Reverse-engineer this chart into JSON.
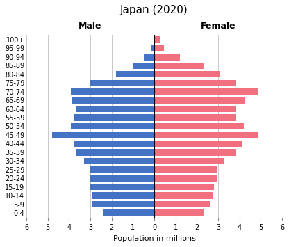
{
  "title": "Japan (2020)",
  "xlabel": "Population in millions",
  "age_groups": [
    "0-4",
    "5-9",
    "10-14",
    "15-19",
    "20-24",
    "25-29",
    "30-34",
    "35-39",
    "40-44",
    "45-49",
    "50-54",
    "55-59",
    "60-64",
    "65-69",
    "70-74",
    "75-79",
    "80-84",
    "85-89",
    "90-94",
    "95-99",
    "100+"
  ],
  "male": [
    2.4,
    2.9,
    2.9,
    3.0,
    3.0,
    3.0,
    3.3,
    3.7,
    3.8,
    4.8,
    3.9,
    3.75,
    3.7,
    3.85,
    3.9,
    3.0,
    1.8,
    1.0,
    0.5,
    0.15,
    0.05
  ],
  "female": [
    2.35,
    2.65,
    2.75,
    2.8,
    2.95,
    2.95,
    3.3,
    3.85,
    4.1,
    4.9,
    4.2,
    3.85,
    3.85,
    4.25,
    4.85,
    3.85,
    3.1,
    2.3,
    1.2,
    0.45,
    0.3
  ],
  "male_color": "#4472C4",
  "female_color": "#F07080",
  "xlim": 6,
  "background_color": "#FFFFFF",
  "male_label": "Male",
  "female_label": "Female",
  "grid_color": "#C0C0C0",
  "title_fontsize": 11,
  "label_fontsize": 9,
  "tick_fontsize": 7,
  "xlabel_fontsize": 8
}
